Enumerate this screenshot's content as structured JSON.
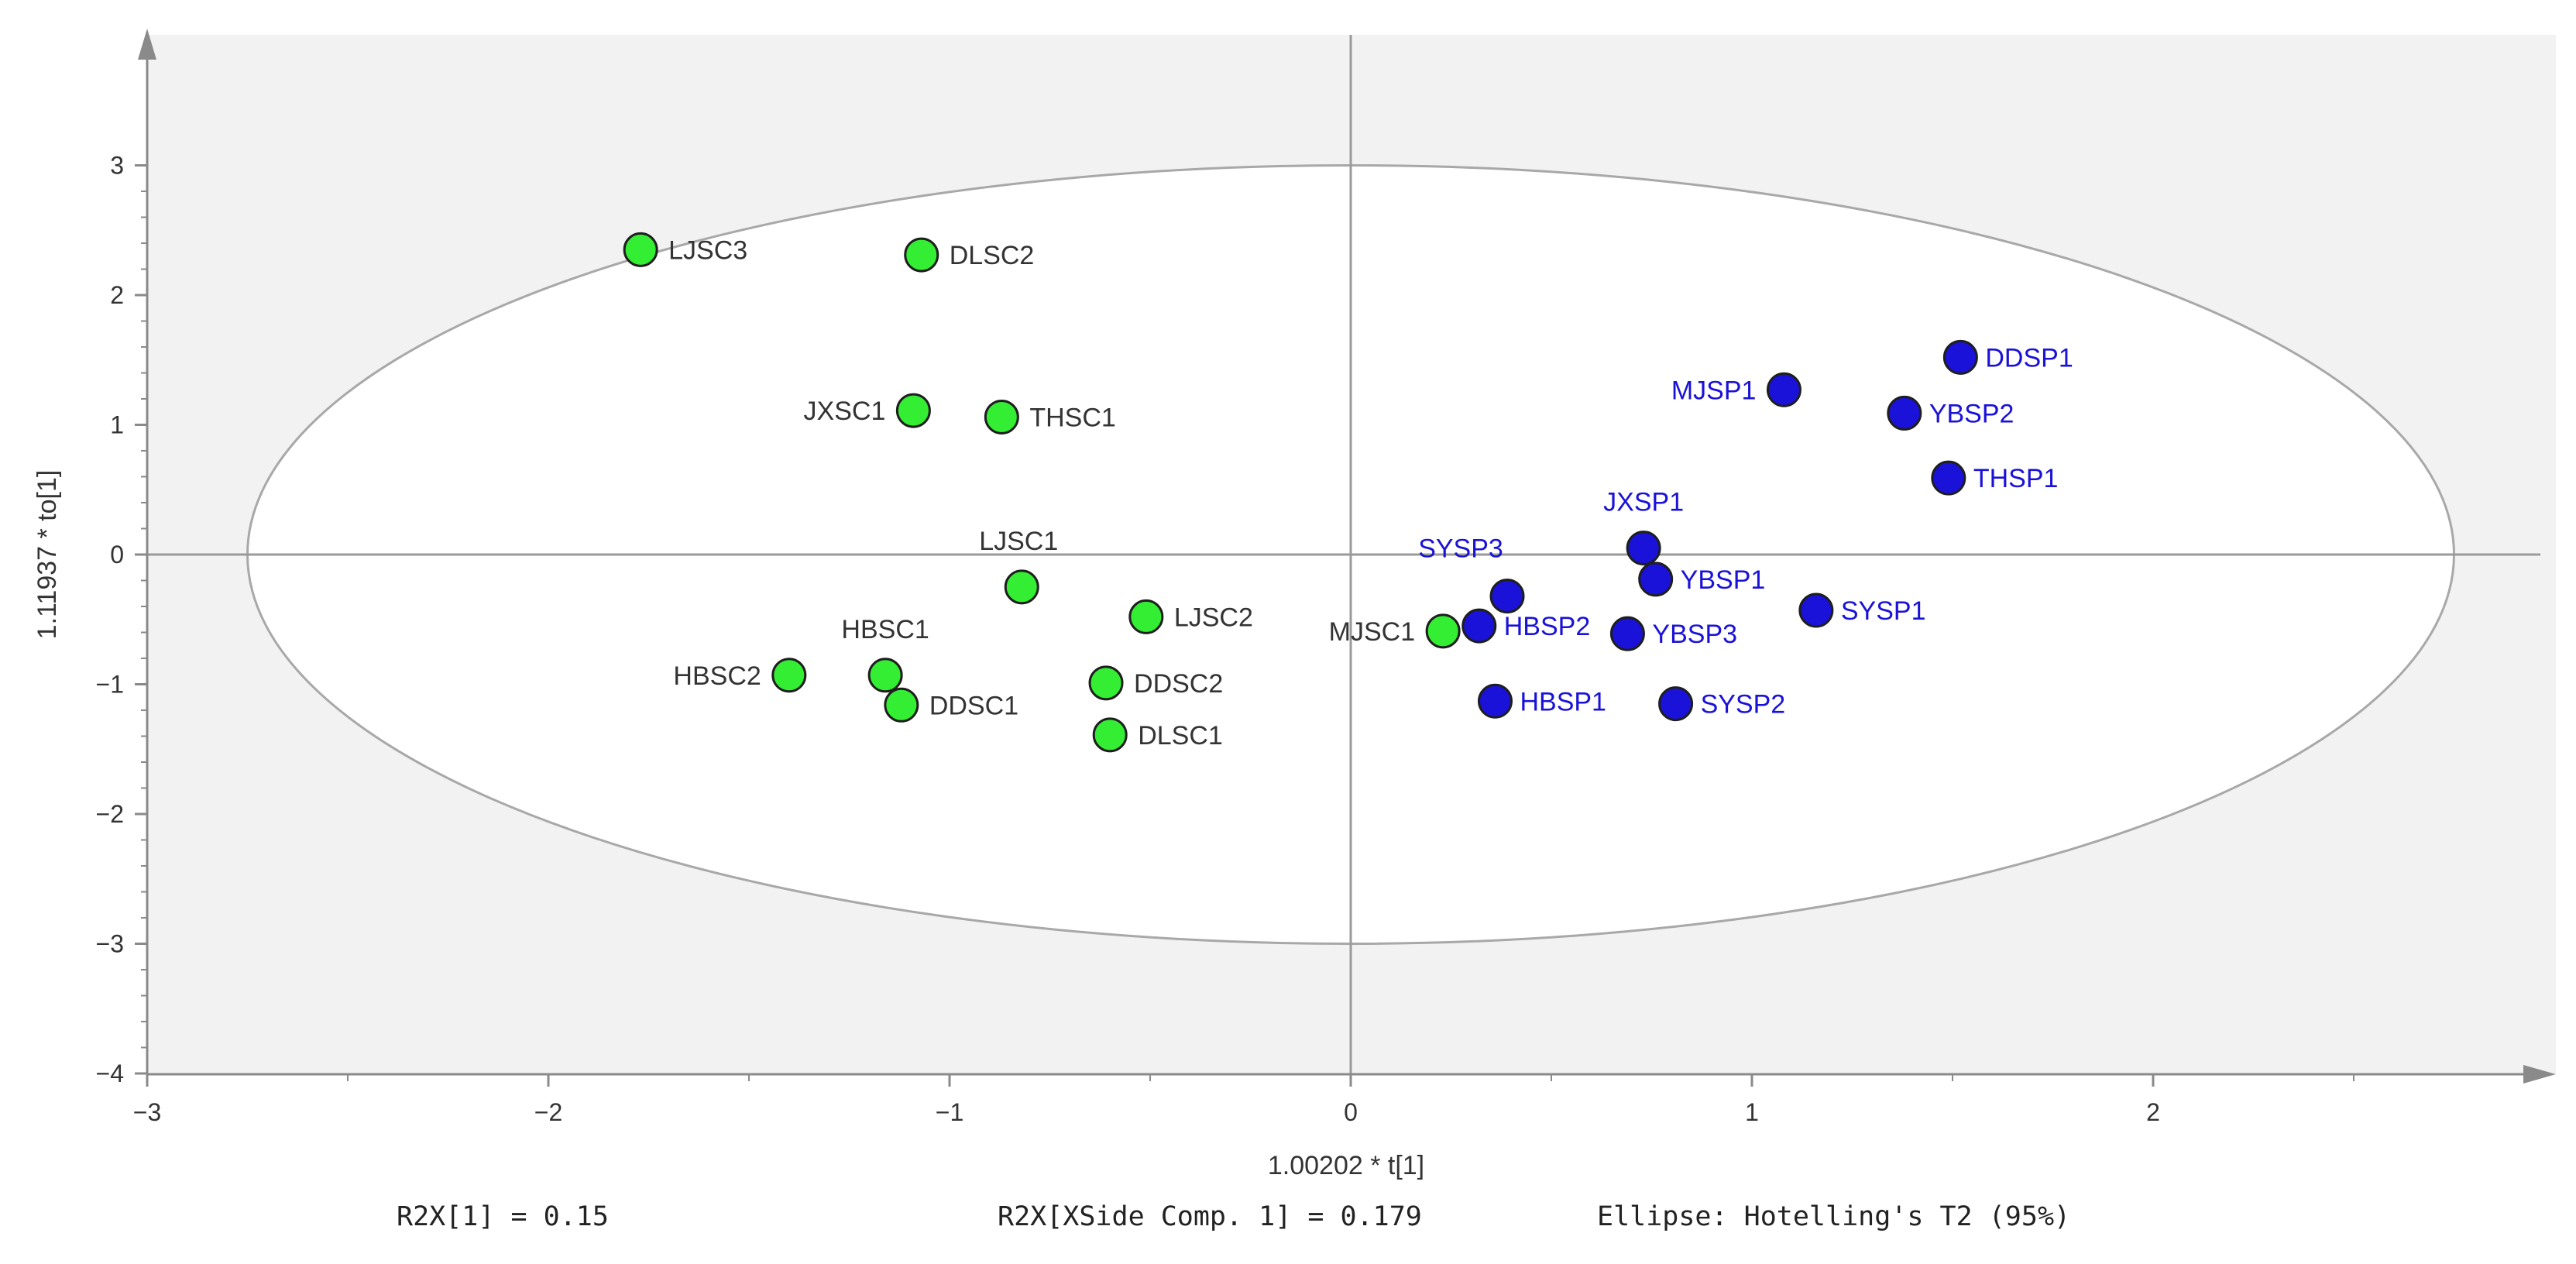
{
  "chart_data": {
    "type": "scatter",
    "xlabel": "1.00202 * t[1]",
    "ylabel": "1.11937 * to[1]",
    "xlim": [
      -3,
      3
    ],
    "ylim": [
      -4,
      4
    ],
    "xticks": [
      -3,
      -2,
      -1,
      0,
      1,
      2
    ],
    "yticks": [
      -4,
      -3,
      -2,
      -1,
      0,
      1,
      2,
      3
    ],
    "xtick_labels": [
      "−3",
      "−2",
      "−1",
      "0",
      "1",
      "2"
    ],
    "ytick_labels": [
      "−4",
      "−3",
      "−2",
      "−1",
      "0",
      "1",
      "2",
      "3"
    ],
    "grid": false,
    "ellipse": {
      "label": "Hotelling's T2 (95%)",
      "rx": 2.75,
      "ry": 3.0
    },
    "colors": {
      "SC": "#33ee33",
      "SP": "#1a12d8",
      "SC_label": "#333333",
      "SP_label": "#1a12d8",
      "plot_bg": "#f2f2f2"
    },
    "series": [
      {
        "group": "SC",
        "points": [
          {
            "label": "LJSC3",
            "x": -1.77,
            "y": 2.35
          },
          {
            "label": "DLSC2",
            "x": -1.07,
            "y": 2.31
          },
          {
            "label": "JXSC1",
            "x": -1.09,
            "y": 1.11
          },
          {
            "label": "THSC1",
            "x": -0.87,
            "y": 1.06
          },
          {
            "label": "LJSC1",
            "x": -0.82,
            "y": -0.25
          },
          {
            "label": "LJSC2",
            "x": -0.51,
            "y": -0.48
          },
          {
            "label": "MJSC1",
            "x": 0.23,
            "y": -0.59
          },
          {
            "label": "HBSC1",
            "x": -1.16,
            "y": -0.93
          },
          {
            "label": "HBSC2",
            "x": -1.4,
            "y": -0.93
          },
          {
            "label": "DDSC1",
            "x": -1.12,
            "y": -1.16
          },
          {
            "label": "DDSC2",
            "x": -0.61,
            "y": -0.99
          },
          {
            "label": "DLSC1",
            "x": -0.6,
            "y": -1.39
          }
        ]
      },
      {
        "group": "SP",
        "points": [
          {
            "label": "DDSP1",
            "x": 1.52,
            "y": 1.52
          },
          {
            "label": "MJSP1",
            "x": 1.08,
            "y": 1.27
          },
          {
            "label": "YBSP2",
            "x": 1.38,
            "y": 1.09
          },
          {
            "label": "THSP1",
            "x": 1.49,
            "y": 0.59
          },
          {
            "label": "JXSP1",
            "x": 0.73,
            "y": 0.05
          },
          {
            "label": "SYSP3",
            "x": 0.39,
            "y": -0.32
          },
          {
            "label": "YBSP1",
            "x": 0.76,
            "y": -0.19
          },
          {
            "label": "SYSP1",
            "x": 1.16,
            "y": -0.43
          },
          {
            "label": "HBSP2",
            "x": 0.32,
            "y": -0.55
          },
          {
            "label": "YBSP3",
            "x": 0.69,
            "y": -0.61
          },
          {
            "label": "HBSP1",
            "x": 0.36,
            "y": -1.13
          },
          {
            "label": "SYSP2",
            "x": 0.81,
            "y": -1.15
          }
        ]
      }
    ]
  },
  "footer": {
    "r2x": "R2X[1] = 0.15",
    "r2x_side": "R2X[XSide Comp. 1] = 0.179",
    "ellipse_note": "Ellipse: Hotelling's T2 (95%)"
  }
}
